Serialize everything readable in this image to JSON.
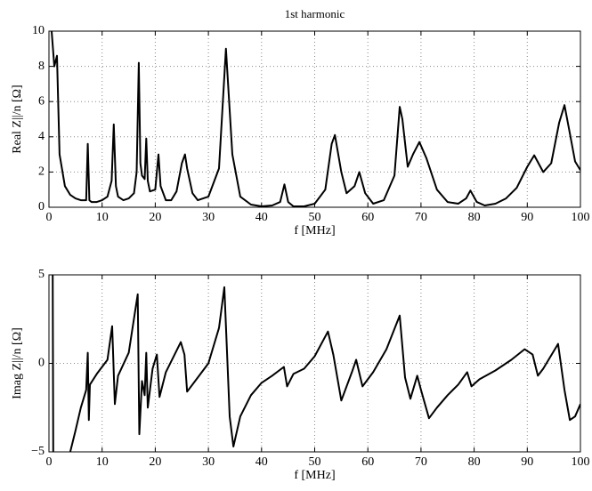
{
  "chart_data": [
    {
      "type": "line",
      "title": "1st harmonic",
      "xlabel": "f [MHz]",
      "ylabel": "Real Z||/n [Ω]",
      "xlim": [
        0,
        100
      ],
      "xticks": [
        0,
        10,
        20,
        30,
        40,
        50,
        60,
        70,
        80,
        90,
        100
      ],
      "ylim": [
        0,
        10
      ],
      "yticks": [
        0,
        2,
        4,
        6,
        8,
        10
      ],
      "grid": true,
      "color": "#000000",
      "x": [
        0.5,
        1,
        1.5,
        2,
        3,
        4,
        5,
        6,
        7,
        7.3,
        7.6,
        8,
        9,
        10,
        11,
        11.8,
        12.2,
        12.6,
        13,
        14,
        15,
        16,
        16.5,
        16.9,
        17.2,
        17.5,
        18,
        18.3,
        18.6,
        19,
        20,
        20.6,
        21,
        22,
        23,
        24,
        25,
        25.6,
        26,
        27,
        28,
        30,
        32,
        33.3,
        34.5,
        36,
        38,
        40,
        42,
        43.5,
        44.3,
        45,
        46,
        48,
        50,
        52,
        53.2,
        53.8,
        55,
        56,
        57.5,
        58.4,
        59.5,
        61,
        63,
        65,
        66,
        66.5,
        67.5,
        68.5,
        69.7,
        71,
        73,
        75,
        77,
        78.5,
        79.3,
        80.5,
        82,
        84,
        86,
        88,
        90,
        91.3,
        93,
        94.5,
        96,
        97,
        98,
        99,
        100
      ],
      "values": [
        10,
        8,
        8.6,
        3,
        1.2,
        0.7,
        0.5,
        0.4,
        0.4,
        3.6,
        0.4,
        0.3,
        0.3,
        0.4,
        0.6,
        1.5,
        4.7,
        1.2,
        0.6,
        0.4,
        0.5,
        0.8,
        2,
        8.2,
        2.5,
        1.8,
        1.6,
        3.9,
        1.5,
        0.9,
        1,
        3,
        1.2,
        0.4,
        0.4,
        0.9,
        2.5,
        3,
        2.2,
        0.8,
        0.4,
        0.6,
        2.2,
        9,
        3,
        0.6,
        0.15,
        0.05,
        0.1,
        0.3,
        1.3,
        0.3,
        0.05,
        0.05,
        0.2,
        1,
        3.6,
        4.1,
        2,
        0.8,
        1.2,
        2,
        0.8,
        0.2,
        0.4,
        1.8,
        5.7,
        5,
        2.3,
        3,
        3.7,
        2.8,
        1,
        0.3,
        0.2,
        0.5,
        0.95,
        0.3,
        0.1,
        0.2,
        0.5,
        1.1,
        2.3,
        2.95,
        2,
        2.5,
        4.8,
        5.8,
        4.2,
        2.6,
        2.1
      ]
    },
    {
      "type": "line",
      "xlabel": "f [MHz]",
      "ylabel": "Imag Z||/n [Ω]",
      "xlim": [
        0,
        100
      ],
      "xticks": [
        0,
        10,
        20,
        30,
        40,
        50,
        60,
        70,
        80,
        90,
        100
      ],
      "ylim": [
        -5,
        5
      ],
      "yticks": [
        {
          "value": -5,
          "label": "−5"
        },
        0,
        5
      ],
      "grid": true,
      "color": "#000000",
      "x": [
        0.7,
        0.8,
        2,
        4,
        5,
        6,
        7,
        7.3,
        7.5,
        7.7,
        9,
        11,
        11.9,
        12.4,
        13,
        15,
        16.7,
        17,
        17.5,
        18,
        18.3,
        18.6,
        19.5,
        20.3,
        20.8,
        22,
        24.8,
        25.5,
        26,
        28,
        30,
        32,
        33,
        34,
        34.7,
        36,
        38,
        40,
        42,
        44.2,
        44.8,
        46,
        48,
        50,
        52.5,
        53.5,
        55,
        57,
        57.8,
        59,
        61,
        63.5,
        66,
        67,
        68,
        69.3,
        70,
        71.5,
        73,
        75,
        77,
        78.7,
        79.5,
        81,
        84,
        87,
        89.5,
        91,
        92,
        93,
        95.8,
        97,
        98,
        99,
        100
      ],
      "values": [
        5,
        -5,
        null,
        -5,
        -3.8,
        -2.5,
        -1.5,
        0.6,
        -3.2,
        -1.2,
        -0.6,
        0.2,
        2.1,
        -2.3,
        -0.7,
        0.6,
        3.9,
        -4,
        -1,
        -1.8,
        0.6,
        -2.5,
        -0.3,
        0.5,
        -1.9,
        -0.5,
        1.2,
        0.5,
        -1.6,
        -0.8,
        0,
        2,
        4.3,
        -3,
        -4.7,
        -3,
        -1.8,
        -1.1,
        -0.7,
        -0.2,
        -1.3,
        -0.6,
        -0.3,
        0.4,
        1.8,
        0.5,
        -2.1,
        -0.5,
        0.2,
        -1.3,
        -0.5,
        0.8,
        2.7,
        -0.8,
        -2,
        -0.7,
        -1.5,
        -3.1,
        -2.5,
        -1.8,
        -1.2,
        -0.5,
        -1.3,
        -0.9,
        -0.4,
        0.2,
        0.8,
        0.5,
        -0.7,
        -0.3,
        1.1,
        -1.5,
        -3.2,
        -3,
        -2.3
      ]
    }
  ]
}
